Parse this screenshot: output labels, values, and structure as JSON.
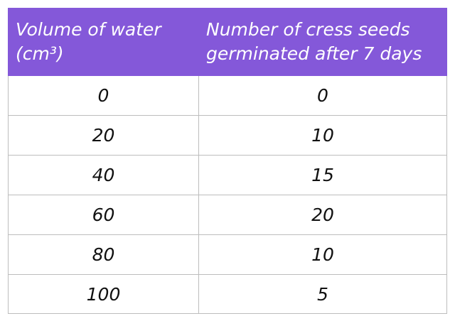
{
  "table": {
    "header": {
      "col1": "Volume of water (cm³)",
      "col2": "Number of cress seeds germinated after 7 days"
    },
    "rows": [
      {
        "volume": "0",
        "seeds": "0"
      },
      {
        "volume": "20",
        "seeds": "10"
      },
      {
        "volume": "40",
        "seeds": "15"
      },
      {
        "volume": "60",
        "seeds": "20"
      },
      {
        "volume": "80",
        "seeds": "10"
      },
      {
        "volume": "100",
        "seeds": "5"
      }
    ]
  },
  "colors": {
    "header_bg": "#8458d9",
    "header_text": "#ffffff",
    "grid": "#bdbdbd"
  }
}
